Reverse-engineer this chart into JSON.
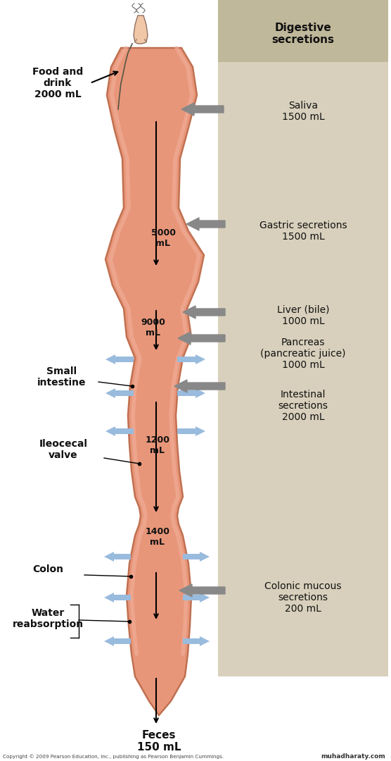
{
  "bg_color": "#ffffff",
  "tract_color": "#E8967A",
  "tract_outline_color": "#C07050",
  "right_panel_color": "#D8D0BC",
  "right_panel_header_color": "#C0B89A",
  "gray_arrow_color": "#888888",
  "blue_arrow_color": "#99BBDD",
  "text_color": "#111111",
  "copyright_text": "Copyright © 2009 Pearson Education, Inc., publishing as Pearson Benjamin Cummings.",
  "watermark_text": "muhadharaty.com",
  "labels": {
    "food_drink": "Food and\ndrink\n2000 mL",
    "digestive_secretions": "Digestive\nsecretions",
    "saliva": "Saliva\n1500 mL",
    "gastric": "Gastric secretions\n1500 mL",
    "liver": "Liver (bile)\n1000 mL",
    "pancreas": "Pancreas\n(pancreatic juice)\n1000 mL",
    "intestinal": "Intestinal\nsecretions\n2000 mL",
    "colonic": "Colonic mucous\nsecretions\n200 mL",
    "vol_5000": "5000\nmL",
    "vol_9000": "9000\nmL",
    "vol_1200": "1200\nmL",
    "vol_1400": "1400\nmL",
    "small_intestine": "Small\nintestine",
    "ileocecal": "Ileocecal\nvalve",
    "colon": "Colon",
    "water_reabsorption": "Water\nreabsorption",
    "feces": "Feces\n150 mL"
  }
}
